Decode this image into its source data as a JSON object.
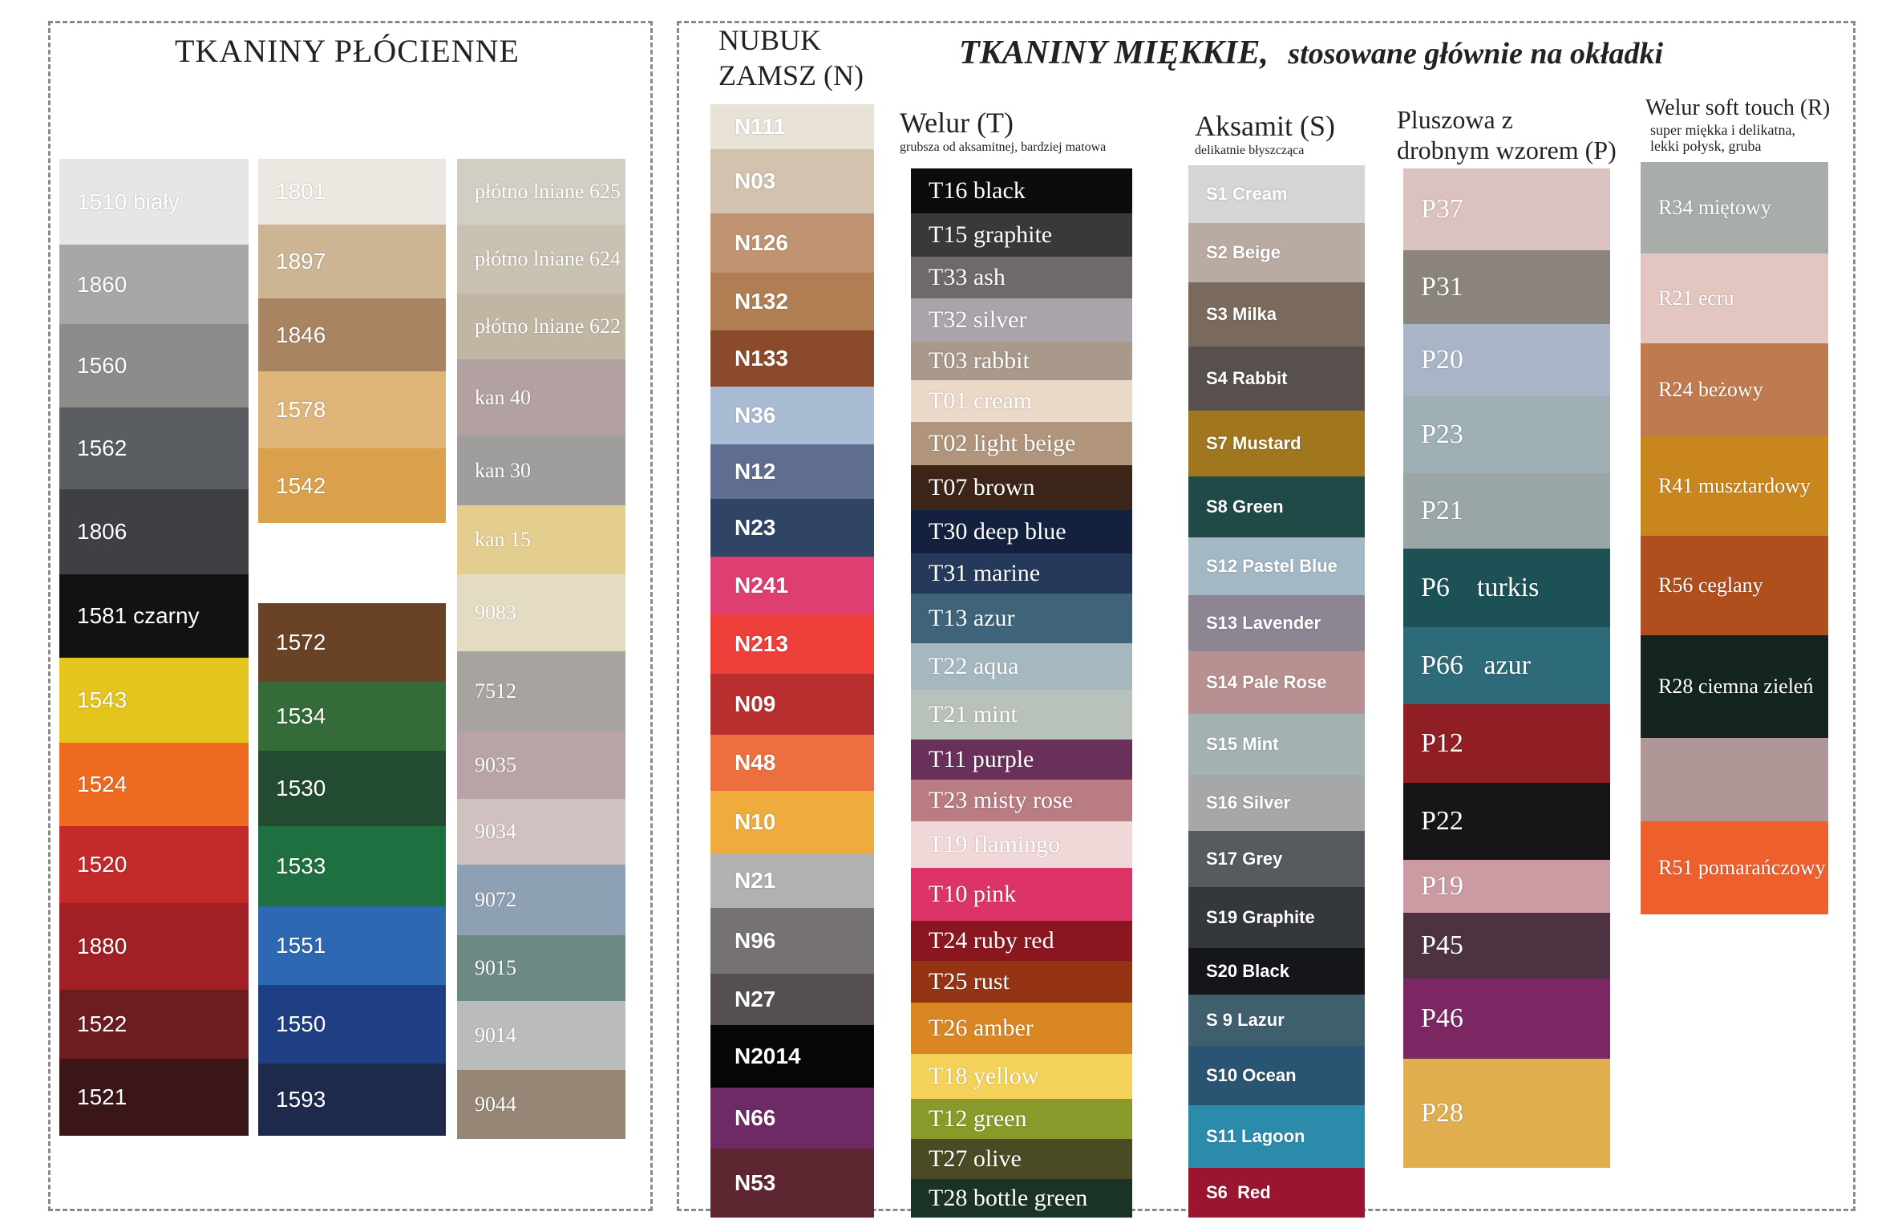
{
  "left_title": "TKANINY PŁÓCIENNE",
  "right_title_main": "TKANINY MIĘKKIE,",
  "right_title_sub": "stosowane głównie na okładki",
  "nubuk_title_1": "NUBUK",
  "nubuk_title_2": "ZAMSZ  (N)",
  "welur_title": "Welur  (T)",
  "welur_sub": "grubsza od aksamitnej, bardziej matowa",
  "aksamit_title": "Aksamit  (S)",
  "aksamit_sub": "delikatnie błyszcząca",
  "plusz_title_1": "Pluszowa z",
  "plusz_title_2": "drobnym wzorem  (P)",
  "soft_title": "Welur soft touch  (R)",
  "soft_sub_1": "super miękka i delikatna,",
  "soft_sub_2": "lekki połysk, gruba",
  "colors": {
    "col1": [
      {
        "label": "1510 biały",
        "color": "#e6e6e6",
        "text": "#ffffff"
      },
      {
        "label": "1860",
        "color": "#a6a7a9",
        "text": "#ffffff"
      },
      {
        "label": "1560",
        "color": "#8c8d8a",
        "text": "#ffffff"
      },
      {
        "label": "1562",
        "color": "#5a5e63",
        "text": "#ffffff"
      },
      {
        "label": "1806",
        "color": "#3f4044",
        "text": "#ffffff"
      },
      {
        "label": "1581 czarny",
        "color": "#121212",
        "text": "#ffffff"
      },
      {
        "label": "1543",
        "color": "#e4c51d",
        "text": "#ffffff"
      },
      {
        "label": "1524",
        "color": "#ef6a21",
        "text": "#ffffff"
      },
      {
        "label": "1520",
        "color": "#c42a2a",
        "text": "#ffffff"
      },
      {
        "label": "1880",
        "color": "#a21f26",
        "text": "#ffffff"
      },
      {
        "label": "1522",
        "color": "#6e1c1f",
        "text": "#ffffff"
      },
      {
        "label": "1521",
        "color": "#3a1618",
        "text": "#ffffff"
      }
    ],
    "col2": [
      {
        "label": "1801",
        "color": "#ece8e1",
        "text": "#ffffff"
      },
      {
        "label": "1897",
        "color": "#cdb594",
        "text": "#ffffff"
      },
      {
        "label": "1846",
        "color": "#a88460",
        "text": "#ffffff"
      },
      {
        "label": "1578",
        "color": "#e0b579",
        "text": "#ffffff"
      },
      {
        "label": "1542",
        "color": "#dba04c",
        "text": "#ffffff"
      },
      {
        "label": "1572",
        "color": "#6a4326",
        "text": "#ffffff"
      },
      {
        "label": "1534",
        "color": "#356b38",
        "text": "#ffffff"
      },
      {
        "label": "1530",
        "color": "#234b32",
        "text": "#ffffff"
      },
      {
        "label": "1533",
        "color": "#1f7040",
        "text": "#ffffff"
      },
      {
        "label": "1551",
        "color": "#2e67b2",
        "text": "#ffffff"
      },
      {
        "label": "1550",
        "color": "#1f3f84",
        "text": "#ffffff"
      },
      {
        "label": "1593",
        "color": "#1e2a4b",
        "text": "#ffffff"
      }
    ],
    "col3": [
      {
        "label": "płótno lniane 625",
        "color": "#d3cec4",
        "text": "#ffffff"
      },
      {
        "label": "płótno lniane 624",
        "color": "#c9c1b2",
        "text": "#ffffff"
      },
      {
        "label": "płótno lniane 622",
        "color": "#c1b6a3",
        "text": "#ffffff"
      },
      {
        "label": "kan 40",
        "color": "#b3a0a0",
        "text": "#ffffff"
      },
      {
        "label": "kan 30",
        "color": "#a09e9d",
        "text": "#ffffff"
      },
      {
        "label": "kan 15",
        "color": "#e3cd8f",
        "text": "#ffffff"
      },
      {
        "label": "9083",
        "color": "#e4dcc2",
        "text": "#ffffff"
      },
      {
        "label": "7512",
        "color": "#a7a49f",
        "text": "#ffffff"
      },
      {
        "label": "9035",
        "color": "#b8a4a6",
        "text": "#ffffff"
      },
      {
        "label": "9034",
        "color": "#d1c0c0",
        "text": "#ffffff"
      },
      {
        "label": "9072",
        "color": "#8ea0b4",
        "text": "#ffffff"
      },
      {
        "label": "9015",
        "color": "#6e8a85",
        "text": "#ffffff"
      },
      {
        "label": "9014",
        "color": "#b9bcbb",
        "text": "#ffffff"
      },
      {
        "label": "9044",
        "color": "#958676",
        "text": "#ffffff"
      }
    ],
    "nubuk": [
      {
        "label": "N111",
        "color": "#e9e3d7",
        "text": "#ffffff"
      },
      {
        "label": "N03",
        "color": "#d2c2ae",
        "text": "#ffffff"
      },
      {
        "label": "N126",
        "color": "#c09472",
        "text": "#ffffff"
      },
      {
        "label": "N132",
        "color": "#b07e52",
        "text": "#ffffff"
      },
      {
        "label": "N133",
        "color": "#8a4a2b",
        "text": "#ffffff"
      },
      {
        "label": "N36",
        "color": "#a9bcd3",
        "text": "#ffffff"
      },
      {
        "label": "N12",
        "color": "#5f6d90",
        "text": "#ffffff"
      },
      {
        "label": "N23",
        "color": "#304466",
        "text": "#ffffff"
      },
      {
        "label": "N241",
        "color": "#de3f70",
        "text": "#ffffff"
      },
      {
        "label": "N213",
        "color": "#ee3f3a",
        "text": "#ffffff"
      },
      {
        "label": "N09",
        "color": "#b92e2f",
        "text": "#ffffff"
      },
      {
        "label": "N48",
        "color": "#ec6f40",
        "text": "#ffffff"
      },
      {
        "label": "N10",
        "color": "#efac3c",
        "text": "#ffffff"
      },
      {
        "label": "N21",
        "color": "#b0b2b1",
        "text": "#ffffff"
      },
      {
        "label": "N96",
        "color": "#767272",
        "text": "#ffffff"
      },
      {
        "label": "N27",
        "color": "#55504f",
        "text": "#ffffff"
      },
      {
        "label": "N2014",
        "color": "#070707",
        "text": "#ffffff"
      },
      {
        "label": "N66",
        "color": "#6d2a64",
        "text": "#ffffff"
      },
      {
        "label": "N53",
        "color": "#5e2630",
        "text": "#ffffff"
      }
    ],
    "welur": [
      {
        "label": "T16 black",
        "color": "#0c0c0c",
        "text": "#ffffff"
      },
      {
        "label": "T15 graphite",
        "color": "#3a3839",
        "text": "#ffffff"
      },
      {
        "label": "T33 ash",
        "color": "#6e6a6c",
        "text": "#ffffff"
      },
      {
        "label": "T32 silver",
        "color": "#a9a4a9",
        "text": "#ffffff"
      },
      {
        "label": "T03 rabbit",
        "color": "#a8998a",
        "text": "#ffffff"
      },
      {
        "label": "T01 cream",
        "color": "#ebd9c8",
        "text": "#ffffff"
      },
      {
        "label": "T02 light beige",
        "color": "#b0957c",
        "text": "#ffffff"
      },
      {
        "label": "T07 brown",
        "color": "#3c2418",
        "text": "#ffffff"
      },
      {
        "label": "T30 deep blue",
        "color": "#13213f",
        "text": "#ffffff"
      },
      {
        "label": "T31 marine",
        "color": "#25395a",
        "text": "#ffffff"
      },
      {
        "label": "T13 azur",
        "color": "#3f6479",
        "text": "#ffffff"
      },
      {
        "label": "T22 aqua",
        "color": "#a5b8c0",
        "text": "#ffffff"
      },
      {
        "label": "T21 mint",
        "color": "#b8c1ba",
        "text": "#ffffff"
      },
      {
        "label": "T11 purple",
        "color": "#693059",
        "text": "#ffffff"
      },
      {
        "label": "T23 misty rose",
        "color": "#b87c82",
        "text": "#ffffff"
      },
      {
        "label": "T19 flamingo",
        "color": "#f0d8d8",
        "text": "#ffffff"
      },
      {
        "label": "T10 pink",
        "color": "#dc3466",
        "text": "#ffffff"
      },
      {
        "label": "T24 ruby red",
        "color": "#8a1620",
        "text": "#ffffff"
      },
      {
        "label": "T25 rust",
        "color": "#953414",
        "text": "#ffffff"
      },
      {
        "label": "T26 amber",
        "color": "#d88724",
        "text": "#ffffff"
      },
      {
        "label": "T18 yellow",
        "color": "#f4d25a",
        "text": "#ffffff"
      },
      {
        "label": "T12 green",
        "color": "#8a9a2a",
        "text": "#ffffff"
      },
      {
        "label": "T27 olive",
        "color": "#4a4a25",
        "text": "#ffffff"
      },
      {
        "label": "T28 bottle green",
        "color": "#1b3227",
        "text": "#ffffff"
      }
    ],
    "aksamit": [
      {
        "label": "S1 Cream",
        "color": "#d3d6d2",
        "text": "#ffffff"
      },
      {
        "label": "S2 Beige",
        "color": "#b9aba1",
        "text": "#ffffff"
      },
      {
        "label": "S3 Milka",
        "color": "#7a6a5d",
        "text": "#ffffff"
      },
      {
        "label": "S4 Rabbit",
        "color": "#57504c",
        "text": "#ffffff"
      },
      {
        "label": "S7 Mustard",
        "color": "#a0761e",
        "text": "#ffffff"
      },
      {
        "label": "S8 Green",
        "color": "#1f4a47",
        "text": "#ffffff"
      },
      {
        "label": "S12 Pastel Blue",
        "color": "#a3b8c4",
        "text": "#ffffff"
      },
      {
        "label": "S13 Lavender",
        "color": "#8e8592",
        "text": "#ffffff"
      },
      {
        "label": "S14 Pale Rose",
        "color": "#b89092",
        "text": "#ffffff"
      },
      {
        "label": "S15 Mint",
        "color": "#a3b2b1",
        "text": "#ffffff"
      },
      {
        "label": "S16 Silver",
        "color": "#a5a7a9",
        "text": "#ffffff"
      },
      {
        "label": "S17 Grey",
        "color": "#575b60",
        "text": "#ffffff"
      },
      {
        "label": "S19 Graphite",
        "color": "#34373b",
        "text": "#ffffff"
      },
      {
        "label": "S20 Black",
        "color": "#14161a",
        "text": "#ffffff"
      },
      {
        "label": "S 9 Lazur",
        "color": "#3f5f6d",
        "text": "#ffffff"
      },
      {
        "label": "S10 Ocean",
        "color": "#2a5572",
        "text": "#ffffff"
      },
      {
        "label": "S11 Lagoon",
        "color": "#2c8bab",
        "text": "#ffffff"
      },
      {
        "label": "S6  Red",
        "color": "#9b1530",
        "text": "#ffffff"
      }
    ],
    "plusz": [
      {
        "label": "P37",
        "color": "#dcc1c1",
        "text": "#ffffff"
      },
      {
        "label": "P31",
        "color": "#8a847c",
        "text": "#ffffff"
      },
      {
        "label": "P20",
        "color": "#a9b5c6",
        "text": "#ffffff"
      },
      {
        "label": "P23",
        "color": "#9eb0b3",
        "text": "#ffffff"
      },
      {
        "label": "P21",
        "color": "#9aa5a6",
        "text": "#ffffff"
      },
      {
        "label": "P6    turkis",
        "color": "#1c5155",
        "text": "#ffffff"
      },
      {
        "label": "P66   azur",
        "color": "#2d6b78",
        "text": "#ffffff"
      },
      {
        "label": "P12",
        "color": "#8f1f24",
        "text": "#ffffff"
      },
      {
        "label": "P22",
        "color": "#171617",
        "text": "#ffffff"
      },
      {
        "label": "P19",
        "color": "#cb9aa3",
        "text": "#ffffff"
      },
      {
        "label": "P45",
        "color": "#4d3342",
        "text": "#ffffff"
      },
      {
        "label": "P46",
        "color": "#7a2763",
        "text": "#ffffff"
      },
      {
        "label": "P28",
        "color": "#e0ad4f",
        "text": "#ffffff"
      }
    ],
    "soft": [
      {
        "label": "R34 miętowy",
        "color": "#a9adaa",
        "text": "#ffffff"
      },
      {
        "label": "R21 ecru",
        "color": "#e4c6c1",
        "text": "#ffffff"
      },
      {
        "label": "R24 beżowy",
        "color": "#c07a50",
        "text": "#ffffff"
      },
      {
        "label": "R41 musztardowy",
        "color": "#c9861c",
        "text": "#ffffff"
      },
      {
        "label": "R56 ceglany",
        "color": "#b04e1e",
        "text": "#ffffff"
      },
      {
        "label": "R28 ciemna zieleń",
        "color": "#142421",
        "text": "#ffffff"
      },
      {
        "label": "",
        "color": "#b09696",
        "text": "#ffffff"
      },
      {
        "label": "R51 pomarańczowy",
        "color": "#ee5f2e",
        "text": "#ffffff"
      }
    ]
  }
}
